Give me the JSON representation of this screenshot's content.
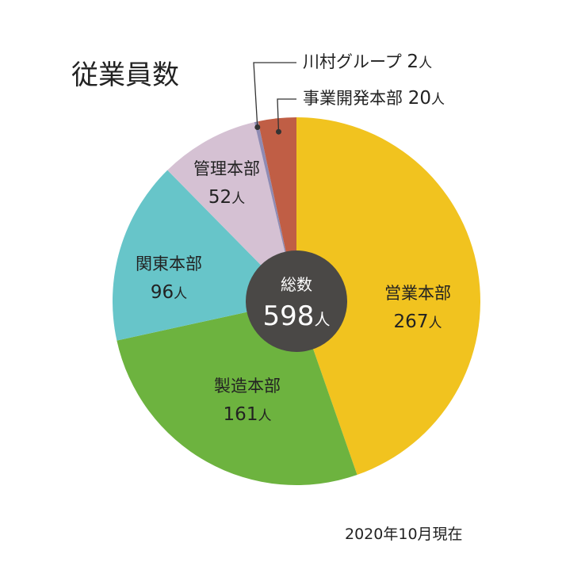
{
  "chart_data": {
    "type": "pie",
    "title": "従業員数",
    "unit": "人",
    "slices": [
      {
        "label": "営業本部",
        "value": 267,
        "color": "#F1C31F"
      },
      {
        "label": "製造本部",
        "value": 161,
        "color": "#6DB33F"
      },
      {
        "label": "関東本部",
        "value": 96,
        "color": "#67C5C9"
      },
      {
        "label": "管理本部",
        "value": 52,
        "color": "#D5C1D3"
      },
      {
        "label": "川村グループ",
        "value": 2,
        "color": "#8F8BB3"
      },
      {
        "label": "事業開発本部",
        "value": 20,
        "color": "#C05E45"
      }
    ],
    "total": {
      "label": "総数",
      "value": 598,
      "color": "#4A4846"
    },
    "note": "2020年10月現在"
  }
}
